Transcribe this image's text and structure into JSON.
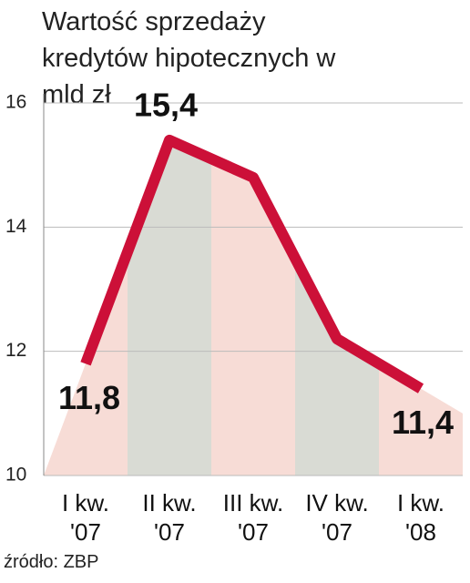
{
  "chart_data": {
    "type": "line",
    "title": "Wartość sprzedaży kredytów hipotecznych w mld zł",
    "source": "źródło: ZBP",
    "categories": [
      "I kw. '07",
      "II kw. '07",
      "III kw. '07",
      "IV kw. '07",
      "I kw. '08"
    ],
    "values": [
      11.8,
      15.4,
      14.8,
      12.2,
      11.4
    ],
    "value_labels": [
      "11,8",
      "15,4",
      null,
      null,
      "11,4"
    ],
    "color": "#cc1038",
    "ylim": [
      10,
      16
    ],
    "yticks": [
      10,
      12,
      14,
      16
    ],
    "grid": true
  }
}
